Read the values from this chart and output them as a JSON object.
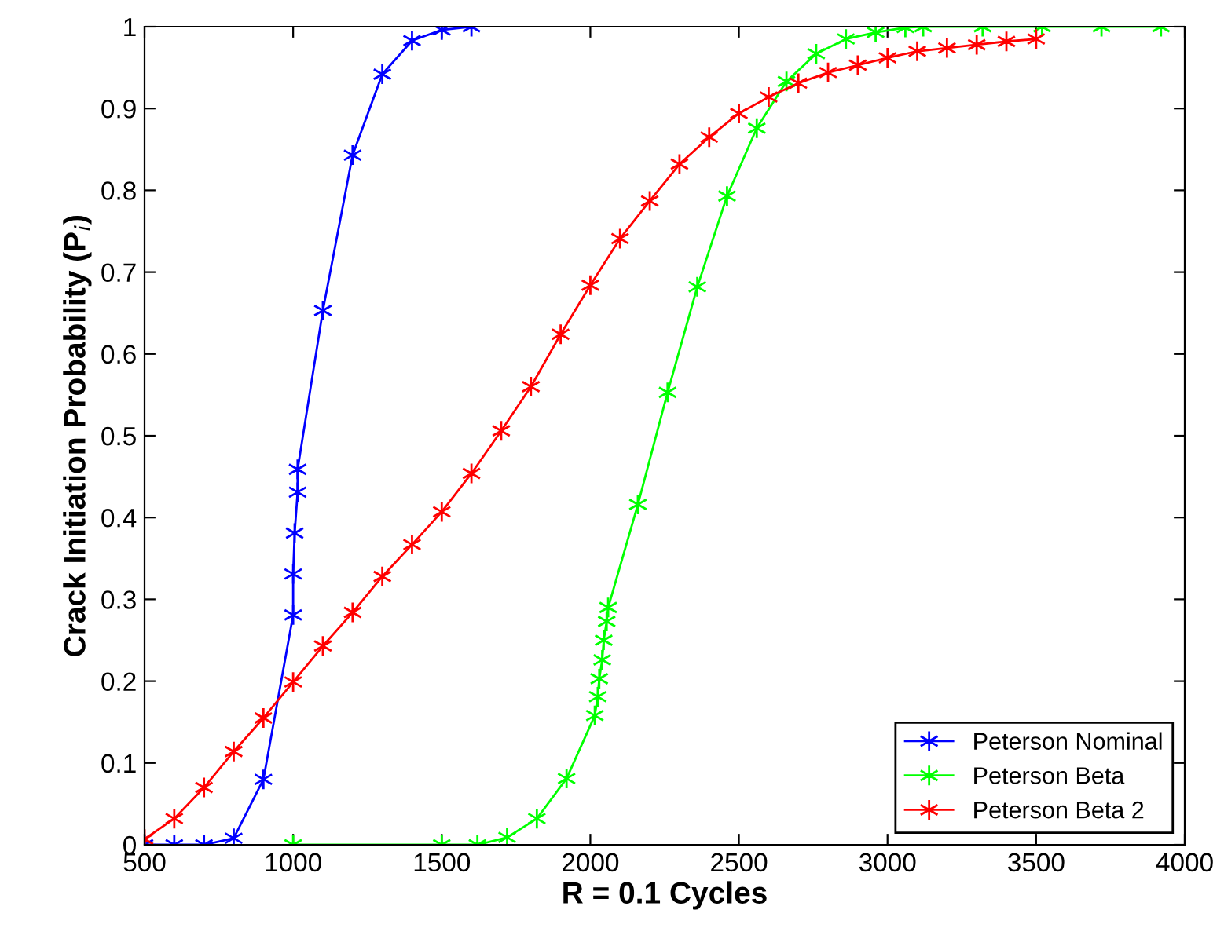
{
  "chart_data": {
    "type": "line",
    "xlabel": "R = 0.1 Cycles",
    "ylabel": "Crack Initiation Probability (P$_{i}$)",
    "xlim": [
      500,
      4000
    ],
    "xticks": [
      500,
      1000,
      1500,
      2000,
      2500,
      3000,
      3500,
      4000
    ],
    "ylim": [
      0,
      1
    ],
    "yticks": [
      0,
      0.1,
      0.2,
      0.3,
      0.4,
      0.5,
      0.6,
      0.7,
      0.8,
      0.9,
      1
    ],
    "grid": false,
    "legend": "bottom right",
    "marker": "cross",
    "line_style": "solid",
    "series": [
      {
        "name": "Peterson Nominal",
        "color": "#0000ff",
        "x": [
          500,
          600,
          700,
          800,
          900,
          1000,
          1000,
          1005,
          1015,
          1015,
          1100,
          1200,
          1300,
          1400,
          1500,
          1600
        ],
        "values": [
          0,
          0,
          0,
          0.008,
          0.08,
          0.281,
          0.331,
          0.381,
          0.431,
          0.459,
          0.653,
          0.843,
          0.942,
          0.983,
          0.996,
          1.0
        ]
      },
      {
        "name": "Peterson Beta",
        "color": "#00ff00",
        "x": [
          1000,
          1500,
          1620,
          1720,
          1820,
          1920,
          2015,
          2025,
          2030,
          2040,
          2045,
          2055,
          2060,
          2160,
          2260,
          2360,
          2460,
          2560,
          2660,
          2760,
          2860,
          2960,
          3060,
          3120,
          3320,
          3520,
          3720,
          3920
        ],
        "values": [
          0,
          0,
          0,
          0.009,
          0.032,
          0.081,
          0.158,
          0.181,
          0.203,
          0.226,
          0.25,
          0.273,
          0.29,
          0.416,
          0.553,
          0.682,
          0.793,
          0.876,
          0.933,
          0.967,
          0.985,
          0.993,
          0.999,
          1,
          1,
          1,
          1,
          1
        ]
      },
      {
        "name": "Peterson Beta 2",
        "color": "#ff0000",
        "x": [
          500,
          600,
          700,
          800,
          900,
          1000,
          1100,
          1200,
          1300,
          1400,
          1500,
          1600,
          1700,
          1800,
          1900,
          2000,
          2100,
          2200,
          2300,
          2400,
          2500,
          2600,
          2700,
          2800,
          2900,
          3000,
          3100,
          3200,
          3300,
          3400,
          3500
        ],
        "values": [
          0.007,
          0.032,
          0.07,
          0.114,
          0.155,
          0.199,
          0.243,
          0.284,
          0.328,
          0.367,
          0.407,
          0.454,
          0.506,
          0.56,
          0.624,
          0.684,
          0.741,
          0.787,
          0.832,
          0.865,
          0.894,
          0.914,
          0.931,
          0.944,
          0.953,
          0.962,
          0.97,
          0.974,
          0.978,
          0.982,
          0.985
        ]
      }
    ]
  }
}
